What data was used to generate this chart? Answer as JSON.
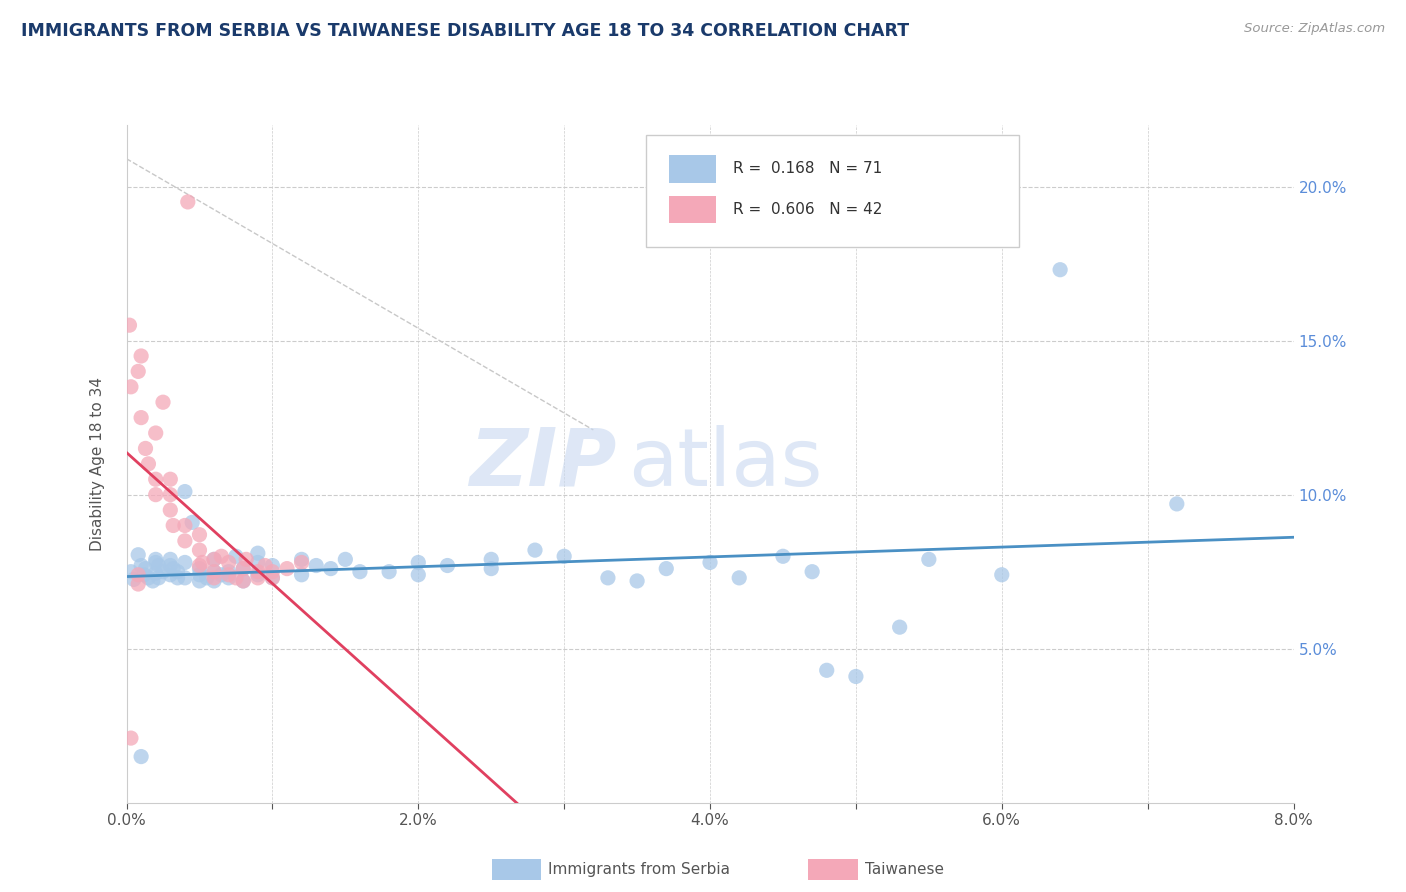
{
  "title": "IMMIGRANTS FROM SERBIA VS TAIWANESE DISABILITY AGE 18 TO 34 CORRELATION CHART",
  "source_text": "Source: ZipAtlas.com",
  "ylabel": "Disability Age 18 to 34",
  "xlim": [
    0.0,
    0.08
  ],
  "ylim": [
    0.0,
    0.22
  ],
  "x_ticks": [
    0.0,
    0.01,
    0.02,
    0.03,
    0.04,
    0.05,
    0.06,
    0.07,
    0.08
  ],
  "x_tick_labels": [
    "0.0%",
    "",
    "2.0%",
    "",
    "4.0%",
    "",
    "6.0%",
    "",
    "8.0%"
  ],
  "y_ticks": [
    0.0,
    0.05,
    0.1,
    0.15,
    0.2
  ],
  "y_tick_labels_right": [
    "",
    "5.0%",
    "10.0%",
    "15.0%",
    "20.0%"
  ],
  "watermark_zip": "ZIP",
  "watermark_atlas": "atlas",
  "legend_r1": "R =  0.168",
  "legend_n1": "N = 71",
  "legend_r2": "R =  0.606",
  "legend_n2": "N = 42",
  "color_blue": "#a8c8e8",
  "color_pink": "#f4a8b8",
  "trendline_color_blue": "#4a90c4",
  "trendline_color_pink": "#e04060",
  "trendline_dashed_color": "#c8c8c8",
  "background_color": "#ffffff",
  "title_color": "#1a3a6b",
  "axis_color": "#888888",
  "right_axis_color": "#5b8dd9",
  "scatter_blue": [
    [
      0.0003,
      0.075
    ],
    [
      0.0005,
      0.0725
    ],
    [
      0.0008,
      0.0805
    ],
    [
      0.001,
      0.077
    ],
    [
      0.0012,
      0.074
    ],
    [
      0.0013,
      0.076
    ],
    [
      0.0015,
      0.073
    ],
    [
      0.0018,
      0.072
    ],
    [
      0.002,
      0.0745
    ],
    [
      0.002,
      0.078
    ],
    [
      0.002,
      0.079
    ],
    [
      0.0022,
      0.077
    ],
    [
      0.0022,
      0.073
    ],
    [
      0.0025,
      0.075
    ],
    [
      0.003,
      0.079
    ],
    [
      0.003,
      0.077
    ],
    [
      0.003,
      0.074
    ],
    [
      0.0032,
      0.076
    ],
    [
      0.0035,
      0.073
    ],
    [
      0.0035,
      0.075
    ],
    [
      0.004,
      0.078
    ],
    [
      0.004,
      0.073
    ],
    [
      0.004,
      0.101
    ],
    [
      0.0045,
      0.091
    ],
    [
      0.005,
      0.074
    ],
    [
      0.005,
      0.072
    ],
    [
      0.005,
      0.076
    ],
    [
      0.0055,
      0.073
    ],
    [
      0.006,
      0.072
    ],
    [
      0.006,
      0.075
    ],
    [
      0.006,
      0.079
    ],
    [
      0.0065,
      0.074
    ],
    [
      0.007,
      0.073
    ],
    [
      0.007,
      0.075
    ],
    [
      0.0075,
      0.08
    ],
    [
      0.008,
      0.072
    ],
    [
      0.008,
      0.076
    ],
    [
      0.009,
      0.074
    ],
    [
      0.009,
      0.078
    ],
    [
      0.009,
      0.081
    ],
    [
      0.01,
      0.073
    ],
    [
      0.01,
      0.077
    ],
    [
      0.012,
      0.074
    ],
    [
      0.012,
      0.079
    ],
    [
      0.013,
      0.077
    ],
    [
      0.014,
      0.076
    ],
    [
      0.015,
      0.079
    ],
    [
      0.016,
      0.075
    ],
    [
      0.018,
      0.075
    ],
    [
      0.02,
      0.074
    ],
    [
      0.02,
      0.078
    ],
    [
      0.022,
      0.077
    ],
    [
      0.025,
      0.076
    ],
    [
      0.025,
      0.079
    ],
    [
      0.028,
      0.082
    ],
    [
      0.03,
      0.08
    ],
    [
      0.033,
      0.073
    ],
    [
      0.035,
      0.072
    ],
    [
      0.037,
      0.076
    ],
    [
      0.04,
      0.078
    ],
    [
      0.042,
      0.073
    ],
    [
      0.045,
      0.08
    ],
    [
      0.047,
      0.075
    ],
    [
      0.048,
      0.043
    ],
    [
      0.05,
      0.041
    ],
    [
      0.053,
      0.057
    ],
    [
      0.055,
      0.079
    ],
    [
      0.06,
      0.074
    ],
    [
      0.064,
      0.173
    ],
    [
      0.072,
      0.097
    ],
    [
      0.001,
      0.015
    ]
  ],
  "scatter_pink": [
    [
      0.0002,
      0.155
    ],
    [
      0.0003,
      0.135
    ],
    [
      0.0008,
      0.14
    ],
    [
      0.001,
      0.125
    ],
    [
      0.001,
      0.145
    ],
    [
      0.0013,
      0.115
    ],
    [
      0.0015,
      0.11
    ],
    [
      0.002,
      0.12
    ],
    [
      0.002,
      0.105
    ],
    [
      0.002,
      0.1
    ],
    [
      0.0025,
      0.13
    ],
    [
      0.003,
      0.1
    ],
    [
      0.003,
      0.095
    ],
    [
      0.003,
      0.105
    ],
    [
      0.0032,
      0.09
    ],
    [
      0.004,
      0.09
    ],
    [
      0.004,
      0.085
    ],
    [
      0.0042,
      0.195
    ],
    [
      0.005,
      0.087
    ],
    [
      0.005,
      0.082
    ],
    [
      0.005,
      0.077
    ],
    [
      0.0052,
      0.078
    ],
    [
      0.006,
      0.079
    ],
    [
      0.006,
      0.075
    ],
    [
      0.006,
      0.073
    ],
    [
      0.0065,
      0.08
    ],
    [
      0.007,
      0.078
    ],
    [
      0.007,
      0.074
    ],
    [
      0.0075,
      0.073
    ],
    [
      0.008,
      0.072
    ],
    [
      0.008,
      0.076
    ],
    [
      0.0082,
      0.079
    ],
    [
      0.009,
      0.075
    ],
    [
      0.009,
      0.073
    ],
    [
      0.0095,
      0.077
    ],
    [
      0.01,
      0.075
    ],
    [
      0.01,
      0.073
    ],
    [
      0.011,
      0.076
    ],
    [
      0.012,
      0.078
    ],
    [
      0.0003,
      0.021
    ],
    [
      0.0008,
      0.074
    ],
    [
      0.0008,
      0.071
    ]
  ]
}
